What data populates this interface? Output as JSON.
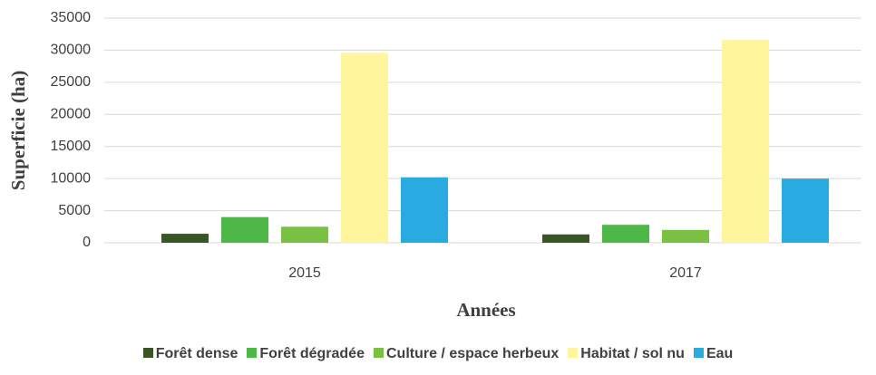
{
  "chart_data": {
    "type": "bar",
    "ylabel": "Superficie (ha)",
    "xlabel": "Années",
    "categories": [
      "2015",
      "2017"
    ],
    "series": [
      {
        "name": "Forêt dense",
        "color": "#375623",
        "values": [
          1400,
          1300
        ]
      },
      {
        "name": "Forêt dégradée",
        "color": "#4db848",
        "values": [
          4000,
          2800
        ]
      },
      {
        "name": "Culture / espace herbeux",
        "color": "#7ac143",
        "values": [
          2500,
          2000
        ]
      },
      {
        "name": "Habitat / sol nu",
        "color": "#fff59d",
        "values": [
          29600,
          31600
        ]
      },
      {
        "name": "Eau",
        "color": "#29abe2",
        "values": [
          10200,
          10000
        ]
      }
    ],
    "ylim": [
      0,
      35000
    ],
    "yticks": [
      0,
      5000,
      10000,
      15000,
      20000,
      25000,
      30000,
      35000
    ],
    "grid": true,
    "legend": "bottom"
  }
}
